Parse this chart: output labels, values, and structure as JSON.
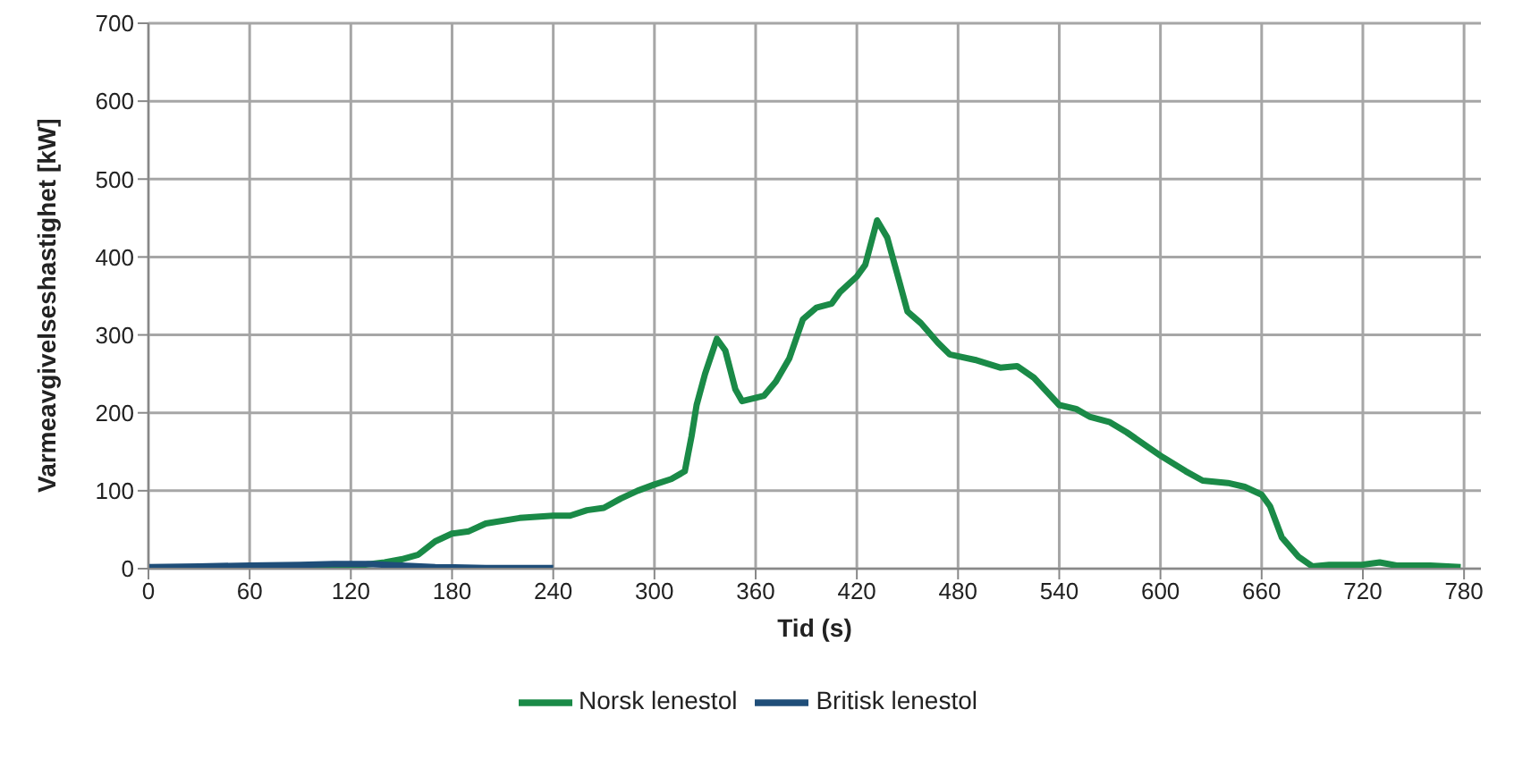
{
  "chart_data": {
    "type": "line",
    "xlabel": "Tid (s)",
    "ylabel": "Varmeavgivelseshastighet [kW]",
    "xlim": [
      0,
      790
    ],
    "xticks": [
      0,
      60,
      120,
      180,
      240,
      300,
      360,
      420,
      480,
      540,
      600,
      660,
      720,
      780
    ],
    "ylim": [
      0,
      700
    ],
    "yticks": [
      0,
      100,
      200,
      300,
      400,
      500,
      600,
      700
    ],
    "grid": true,
    "legend": "bottom",
    "marker": "none",
    "line_style": "solid",
    "series": [
      {
        "name": "Norsk lenestol",
        "color": "#1a8a47",
        "x": [
          0,
          100,
          120,
          140,
          150,
          160,
          170,
          180,
          190,
          200,
          220,
          240,
          250,
          260,
          270,
          280,
          290,
          300,
          310,
          318,
          322,
          325,
          330,
          337,
          342,
          348,
          352,
          365,
          372,
          380,
          388,
          396,
          405,
          410,
          420,
          425,
          432,
          438,
          445,
          450,
          458,
          468,
          475,
          490,
          505,
          515,
          525,
          540,
          550,
          558,
          570,
          580,
          590,
          600,
          615,
          625,
          640,
          650,
          660,
          665,
          672,
          682,
          690,
          700,
          720,
          730,
          740,
          760,
          778
        ],
        "values": [
          0,
          2,
          3,
          8,
          12,
          18,
          35,
          45,
          48,
          58,
          65,
          68,
          68,
          75,
          78,
          90,
          100,
          108,
          115,
          125,
          170,
          210,
          250,
          295,
          280,
          230,
          215,
          222,
          240,
          270,
          320,
          335,
          340,
          355,
          375,
          390,
          447,
          425,
          370,
          330,
          315,
          290,
          275,
          268,
          258,
          260,
          245,
          210,
          205,
          195,
          188,
          175,
          160,
          145,
          125,
          113,
          110,
          105,
          95,
          80,
          40,
          15,
          3,
          5,
          5,
          8,
          4,
          4,
          2
        ]
      },
      {
        "name": "Britisk lenestol",
        "color": "#1f4e79",
        "x": [
          0,
          30,
          60,
          90,
          110,
          130,
          150,
          170,
          200,
          240
        ],
        "values": [
          2,
          3,
          4,
          5,
          6,
          6,
          4,
          2,
          1,
          1
        ]
      }
    ]
  }
}
